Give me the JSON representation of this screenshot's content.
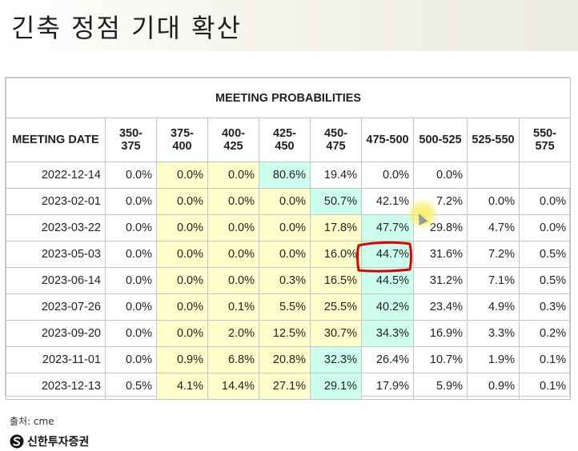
{
  "page": {
    "title": "긴축 정점 기대 확산",
    "source": "출처: cme",
    "brand": "신한투자증권",
    "logo_icon": "shinhan-s-logo"
  },
  "colors": {
    "yellow_fill": "#ffffcc",
    "cyan_fill": "#ccffee",
    "annotation": "#e00000"
  },
  "chart_data": {
    "type": "table",
    "title": "MEETING PROBABILITIES",
    "header": [
      "MEETING DATE",
      "350-375",
      "375-400",
      "400-425",
      "425-450",
      "450-475",
      "475-500",
      "500-525",
      "525-550",
      "550-575"
    ],
    "rows": [
      {
        "date": "2022-12-14",
        "values": [
          "0.0%",
          "0.0%",
          "0.0%",
          "80.6%",
          "19.4%",
          "0.0%",
          "0.0%",
          "",
          ""
        ],
        "max_col": 3
      },
      {
        "date": "2023-02-01",
        "values": [
          "0.0%",
          "0.0%",
          "0.0%",
          "0.0%",
          "50.7%",
          "42.1%",
          "7.2%",
          "0.0%",
          "0.0%"
        ],
        "max_col": 4
      },
      {
        "date": "2023-03-22",
        "values": [
          "0.0%",
          "0.0%",
          "0.0%",
          "0.0%",
          "17.8%",
          "47.7%",
          "29.8%",
          "4.7%",
          "0.0%"
        ],
        "max_col": 5
      },
      {
        "date": "2023-05-03",
        "values": [
          "0.0%",
          "0.0%",
          "0.0%",
          "0.0%",
          "16.0%",
          "44.7%",
          "31.6%",
          "7.2%",
          "0.5%"
        ],
        "max_col": 5
      },
      {
        "date": "2023-06-14",
        "values": [
          "0.0%",
          "0.0%",
          "0.0%",
          "0.3%",
          "16.5%",
          "44.5%",
          "31.2%",
          "7.1%",
          "0.5%"
        ],
        "max_col": 5
      },
      {
        "date": "2023-07-26",
        "values": [
          "0.0%",
          "0.0%",
          "0.1%",
          "5.5%",
          "25.5%",
          "40.2%",
          "23.4%",
          "4.9%",
          "0.3%"
        ],
        "max_col": 5
      },
      {
        "date": "2023-09-20",
        "values": [
          "0.0%",
          "0.0%",
          "2.0%",
          "12.5%",
          "30.7%",
          "34.3%",
          "16.9%",
          "3.3%",
          "0.2%"
        ],
        "max_col": 5
      },
      {
        "date": "2023-11-01",
        "values": [
          "0.0%",
          "0.9%",
          "6.8%",
          "20.8%",
          "32.3%",
          "26.4%",
          "10.7%",
          "1.9%",
          "0.1%"
        ],
        "max_col": 4
      },
      {
        "date": "2023-12-13",
        "values": [
          "0.5%",
          "4.1%",
          "14.4%",
          "27.1%",
          "29.1%",
          "17.9%",
          "5.9%",
          "0.9%",
          "0.1%"
        ],
        "max_col": 4
      }
    ],
    "annotation": {
      "row": 3,
      "col": 5
    }
  }
}
